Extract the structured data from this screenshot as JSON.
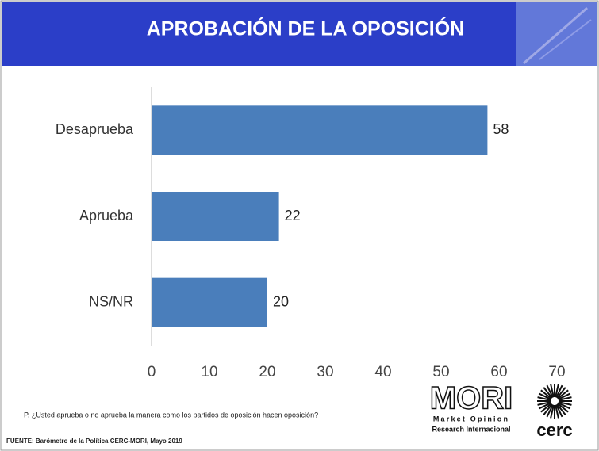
{
  "chart_data": {
    "type": "bar",
    "orientation": "horizontal",
    "title": "APROBACIÓN DE LA OPOSICIÓN",
    "categories": [
      "Desaprueba",
      "Aprueba",
      "NS/NR"
    ],
    "values": [
      58,
      22,
      20
    ],
    "color": "#4a7ebb",
    "xlim": [
      0,
      70
    ],
    "xticks": [
      0,
      10,
      20,
      30,
      40,
      50,
      60,
      70
    ],
    "grid": false,
    "note": "P. ¿Usted aprueba o no aprueba la manera como los partidos de oposición hacen oposición?",
    "source": "FUENTE: Barómetro de la Política CERC-MORI, Mayo 2019"
  },
  "logos": {
    "mori": "MORI",
    "mori_line1": "Market Opinion",
    "mori_line2": "Research Internacional",
    "cerc": "cerc"
  }
}
